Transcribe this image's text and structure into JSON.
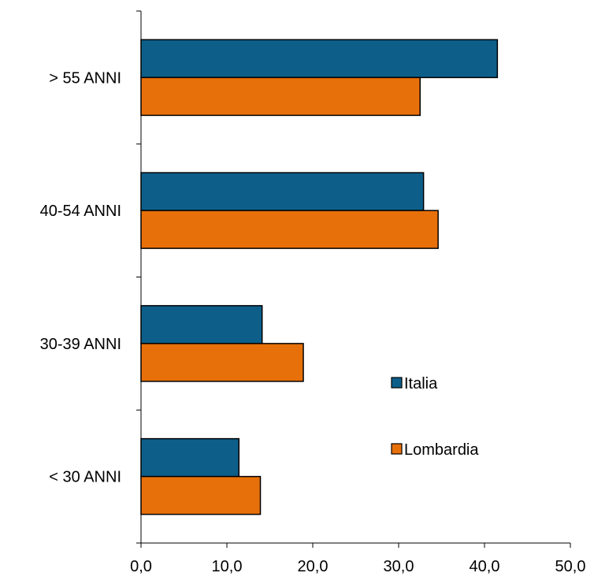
{
  "chart_data": {
    "type": "bar",
    "orientation": "horizontal",
    "categories": [
      "< 30 ANNI",
      "30-39 ANNI",
      "40-54 ANNI",
      "> 55 ANNI"
    ],
    "series": [
      {
        "name": "Italia",
        "color": "#0d5f8a",
        "values": [
          11.4,
          14.1,
          32.9,
          41.5
        ]
      },
      {
        "name": "Lombardia",
        "color": "#e8700a",
        "values": [
          13.9,
          18.9,
          34.6,
          32.5
        ]
      }
    ],
    "xlim": [
      0,
      50
    ],
    "x_ticks": [
      "0,0",
      "10,0",
      "20,0",
      "30,0",
      "40,0",
      "50,0"
    ],
    "title": "",
    "xlabel": "",
    "ylabel": "",
    "grid": false,
    "legend_position": "right-center"
  }
}
